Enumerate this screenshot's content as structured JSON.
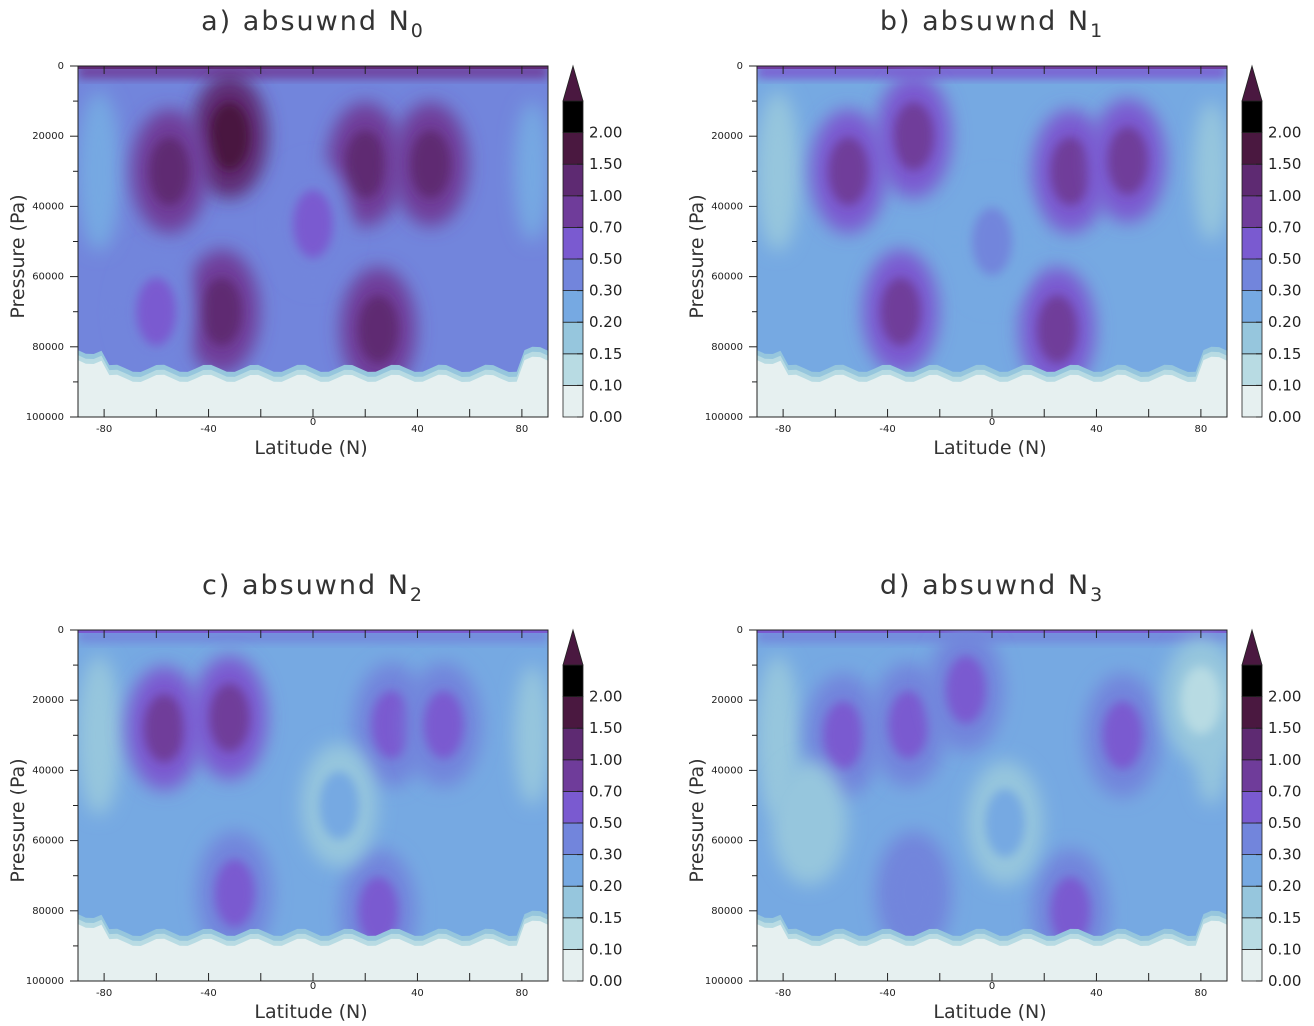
{
  "colors": {
    "c0": "#e6f0f0",
    "c1": "#b8dbe3",
    "c2": "#96c6dd",
    "c3": "#76a9e2",
    "c4": "#7285dc",
    "c5": "#7a5ad0",
    "c6": "#6f3c9a",
    "c7": "#5e2a72",
    "c8": "#4a1840"
  },
  "chart_data": [
    {
      "type": "heatmap",
      "title": "a) absuwnd N",
      "title_subscript": "0",
      "xlabel": "Latitude (N)",
      "ylabel": "Pressure (Pa)",
      "xlim": [
        -90,
        90
      ],
      "ylim": [
        100000,
        0
      ],
      "x_ticks": [
        "-80",
        "-40",
        "0",
        "40",
        "80"
      ],
      "y_ticks": [
        "0",
        "20000",
        "40000",
        "60000",
        "80000",
        "100000"
      ],
      "colorbar_levels": [
        "0.00",
        "0.10",
        "0.15",
        "0.20",
        "0.30",
        "0.50",
        "0.70",
        "1.00",
        "1.50",
        "2.00"
      ],
      "regions": [
        {
          "lat": -32,
          "p": 20000,
          "value": 1.5
        },
        {
          "lat": 20,
          "p": 28000,
          "value": 1.4
        },
        {
          "lat": -55,
          "p": 30000,
          "value": 1.1
        },
        {
          "lat": 45,
          "p": 28000,
          "value": 1.0
        },
        {
          "lat": -35,
          "p": 70000,
          "value": 1.0
        },
        {
          "lat": 25,
          "p": 75000,
          "value": 1.1
        },
        {
          "lat": 0,
          "p": 45000,
          "value": 0.5
        },
        {
          "lat": -60,
          "p": 70000,
          "value": 0.6
        }
      ]
    },
    {
      "type": "heatmap",
      "title": "b) absuwnd N",
      "title_subscript": "1",
      "xlabel": "Latitude (N)",
      "ylabel": "Pressure (Pa)",
      "xlim": [
        -90,
        90
      ],
      "ylim": [
        100000,
        0
      ],
      "x_ticks": [
        "-80",
        "-40",
        "0",
        "40",
        "80"
      ],
      "y_ticks": [
        "0",
        "20000",
        "40000",
        "60000",
        "80000",
        "100000"
      ],
      "colorbar_levels": [
        "0.00",
        "0.10",
        "0.15",
        "0.20",
        "0.30",
        "0.50",
        "0.70",
        "1.00",
        "1.50",
        "2.00"
      ],
      "regions": [
        {
          "lat": -30,
          "p": 20000,
          "value": 0.9
        },
        {
          "lat": 30,
          "p": 30000,
          "value": 0.9
        },
        {
          "lat": -55,
          "p": 30000,
          "value": 0.8
        },
        {
          "lat": 52,
          "p": 27000,
          "value": 0.8
        },
        {
          "lat": -35,
          "p": 70000,
          "value": 0.8
        },
        {
          "lat": 25,
          "p": 75000,
          "value": 0.8
        },
        {
          "lat": 0,
          "p": 50000,
          "value": 0.35
        }
      ]
    },
    {
      "type": "heatmap",
      "title": "c) absuwnd N",
      "title_subscript": "2",
      "xlabel": "Latitude (N)",
      "ylabel": "Pressure (Pa)",
      "xlim": [
        -90,
        90
      ],
      "ylim": [
        100000,
        0
      ],
      "x_ticks": [
        "-80",
        "-40",
        "0",
        "40",
        "80"
      ],
      "y_ticks": [
        "0",
        "20000",
        "40000",
        "60000",
        "80000",
        "100000"
      ],
      "colorbar_levels": [
        "0.00",
        "0.10",
        "0.15",
        "0.20",
        "0.30",
        "0.50",
        "0.70",
        "1.00",
        "1.50",
        "2.00"
      ],
      "regions": [
        {
          "lat": -57,
          "p": 28000,
          "value": 0.9
        },
        {
          "lat": -32,
          "p": 25000,
          "value": 0.8
        },
        {
          "lat": 30,
          "p": 27000,
          "value": 0.6
        },
        {
          "lat": 50,
          "p": 27000,
          "value": 0.6
        },
        {
          "lat": 25,
          "p": 80000,
          "value": 0.6
        },
        {
          "lat": -30,
          "p": 75000,
          "value": 0.6
        },
        {
          "lat": 10,
          "p": 50000,
          "value": 0.25
        }
      ]
    },
    {
      "type": "heatmap",
      "title": "d) absuwnd N",
      "title_subscript": "3",
      "xlabel": "Latitude (N)",
      "ylabel": "Pressure (Pa)",
      "xlim": [
        -90,
        90
      ],
      "ylim": [
        100000,
        0
      ],
      "x_ticks": [
        "-80",
        "-40",
        "0",
        "40",
        "80"
      ],
      "y_ticks": [
        "0",
        "20000",
        "40000",
        "60000",
        "80000",
        "100000"
      ],
      "colorbar_levels": [
        "0.00",
        "0.10",
        "0.15",
        "0.20",
        "0.30",
        "0.50",
        "0.70",
        "1.00",
        "1.50",
        "2.00"
      ],
      "regions": [
        {
          "lat": -57,
          "p": 30000,
          "value": 0.6
        },
        {
          "lat": -32,
          "p": 27000,
          "value": 0.6
        },
        {
          "lat": -10,
          "p": 17000,
          "value": 0.6
        },
        {
          "lat": 50,
          "p": 30000,
          "value": 0.55
        },
        {
          "lat": 30,
          "p": 80000,
          "value": 0.55
        },
        {
          "lat": -30,
          "p": 75000,
          "value": 0.45
        },
        {
          "lat": -70,
          "p": 55000,
          "value": 0.15
        },
        {
          "lat": 5,
          "p": 55000,
          "value": 0.2
        },
        {
          "lat": 80,
          "p": 20000,
          "value": 0.12
        }
      ]
    }
  ]
}
